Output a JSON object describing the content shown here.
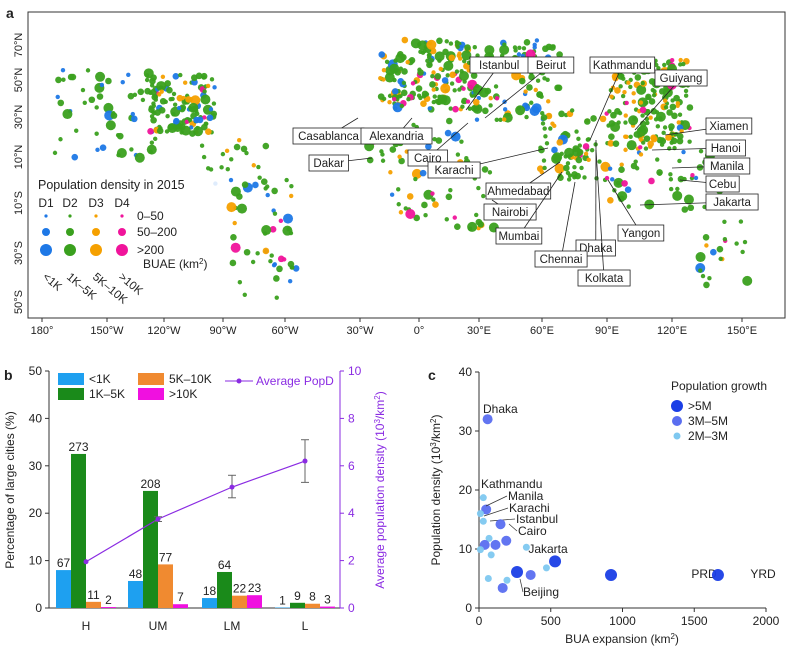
{
  "panels": {
    "a": "a",
    "b": "b",
    "c": "c"
  },
  "map": {
    "lon_ticks": [
      "180°",
      "150°W",
      "120°W",
      "90°W",
      "60°W",
      "30°W",
      "0°",
      "30°E",
      "60°E",
      "90°E",
      "120°E",
      "150°E"
    ],
    "lat_ticks": [
      "70°N",
      "50°N",
      "30°N",
      "10°N",
      "10°S",
      "30°S",
      "50°S"
    ],
    "legend": {
      "title": "Population density in 2015",
      "columns": [
        "D1",
        "D2",
        "D3",
        "D4"
      ],
      "column_colors": [
        "#1e78e6",
        "#3aa01e",
        "#f5a000",
        "#f0149b"
      ],
      "rows": [
        "0–50",
        "50–200",
        ">200"
      ],
      "bua_label": "BUAE (km",
      "bua_sup": "2",
      "bua_close": ")",
      "size_classes": [
        "<1K",
        "1K–5K",
        "5K–10K",
        ">10K"
      ]
    },
    "cities": [
      "Istanbul",
      "Beirut",
      "Kathmandu",
      "Guiyang",
      "Xiamen",
      "Hanoi",
      "Casablanca",
      "Alexandria",
      "Cairo",
      "Dakar",
      "Manila",
      "Cebu",
      "Karachi",
      "Ahmedabad",
      "Jakarta",
      "Nairobi",
      "Yangon",
      "Mumbai",
      "Dhaka",
      "Chennai",
      "Kolkata"
    ]
  },
  "chart_data": [
    {
      "type": "bar",
      "panel": "b",
      "categories": [
        "H",
        "UM",
        "LM",
        "L"
      ],
      "ylabel": "Percentage of large cities (%)",
      "ylim": [
        0,
        50
      ],
      "yticks": [
        "0",
        "10",
        "20",
        "30",
        "40",
        "50"
      ],
      "series": [
        {
          "name": "<1K",
          "color": "#1ea0f0",
          "values": [
            8.0,
            5.7,
            2.1,
            0.1
          ],
          "labels": [
            "67",
            "48",
            "18",
            "1"
          ]
        },
        {
          "name": "1K–5K",
          "color": "#1a8a1a",
          "values": [
            32.5,
            24.7,
            7.6,
            1.1
          ],
          "labels": [
            "273",
            "208",
            "64",
            "9"
          ]
        },
        {
          "name": "5K–10K",
          "color": "#f08a30",
          "values": [
            1.3,
            9.2,
            2.6,
            0.9
          ],
          "labels": [
            "11",
            "77",
            "22",
            "8"
          ]
        },
        {
          "name": ">10K",
          "color": "#f010e0",
          "values": [
            0.2,
            0.8,
            2.7,
            0.3
          ],
          "labels": [
            "2",
            "7",
            "23",
            "3"
          ]
        }
      ],
      "line": {
        "name": "Average PopD",
        "color": "#8a2be2",
        "values": [
          1.95,
          3.75,
          5.1,
          6.2
        ],
        "err_low": [
          1.95,
          3.65,
          4.65,
          5.3
        ],
        "err_high": [
          1.95,
          3.85,
          5.6,
          7.1
        ],
        "y2label": "Average population density (10",
        "y2label_sup": "3",
        "y2label_end": "/km",
        "y2label_sup2": "2",
        "y2label_close": ")",
        "y2lim": [
          0,
          10
        ],
        "y2ticks": [
          "0",
          "2",
          "4",
          "6",
          "8",
          "10"
        ]
      },
      "legend": "top"
    },
    {
      "type": "scatter",
      "panel": "c",
      "xlabel": "BUA expansion (km",
      "xlabel_sup": "2",
      "xlabel_close": ")",
      "ylabel": "Population density (10",
      "ylabel_sup": "3",
      "ylabel_end": "/km",
      "ylabel_sup2": "2",
      "ylabel_close": ")",
      "xlim": [
        0,
        2000
      ],
      "ylim": [
        0,
        40
      ],
      "xticks": [
        "0",
        "500",
        "1000",
        "1500",
        "2000"
      ],
      "yticks": [
        "0",
        "10",
        "20",
        "30",
        "40"
      ],
      "legend": {
        "title": "Population growth",
        "items": [
          {
            "name": ">5M",
            "color": "#1a3ee6"
          },
          {
            "name": "3M–5M",
            "color": "#5a6ef0"
          },
          {
            "name": "2M–3M",
            "color": "#7ec8f0"
          }
        ],
        "placement": "top-right"
      },
      "points": [
        {
          "x": 60,
          "y": 32,
          "g": 1,
          "label": "Dhaka"
        },
        {
          "x": 30,
          "y": 18.7,
          "g": 2,
          "label": "Kathmandu"
        },
        {
          "x": 50,
          "y": 16.7,
          "g": 1,
          "label": "Manila"
        },
        {
          "x": 10,
          "y": 16,
          "g": 2,
          "label": "Karachi"
        },
        {
          "x": 30,
          "y": 14.7,
          "g": 2,
          "label": "Istanbul"
        },
        {
          "x": 150,
          "y": 14.2,
          "g": 1,
          "label": "Cairo"
        },
        {
          "x": 70,
          "y": 11.8,
          "g": 2
        },
        {
          "x": 190,
          "y": 11.4,
          "g": 1
        },
        {
          "x": 40,
          "y": 10.7,
          "g": 1
        },
        {
          "x": 115,
          "y": 10.7,
          "g": 1
        },
        {
          "x": 10,
          "y": 9.9,
          "g": 2
        },
        {
          "x": 85,
          "y": 9.0,
          "g": 2
        },
        {
          "x": 330,
          "y": 10.3,
          "g": 2
        },
        {
          "x": 470,
          "y": 6.8,
          "g": 2
        },
        {
          "x": 530,
          "y": 7.9,
          "g": 0,
          "label": "Jakarta"
        },
        {
          "x": 265,
          "y": 6.1,
          "g": 0,
          "label": "Beijing"
        },
        {
          "x": 360,
          "y": 5.6,
          "g": 1
        },
        {
          "x": 920,
          "y": 5.6,
          "g": 0,
          "label": "PRD"
        },
        {
          "x": 1665,
          "y": 5.6,
          "g": 0,
          "label": "YRD"
        },
        {
          "x": 65,
          "y": 5.0,
          "g": 2
        },
        {
          "x": 195,
          "y": 4.7,
          "g": 2
        },
        {
          "x": 165,
          "y": 3.4,
          "g": 1
        }
      ]
    }
  ]
}
